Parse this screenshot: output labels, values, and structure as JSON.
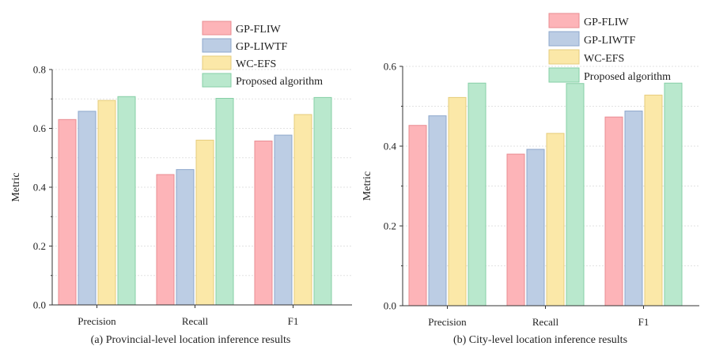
{
  "legend_entries": [
    "GP-FLIW",
    "GP-LIWTF",
    "WC-EFS",
    "Proposed algorithm"
  ],
  "colors": {
    "GP-FLIW": {
      "fill": "#fdb4b8",
      "stroke": "#e98c92"
    },
    "GP-LIWTF": {
      "fill": "#bccde4",
      "stroke": "#8ea8cc"
    },
    "WC-EFS": {
      "fill": "#fbe8a8",
      "stroke": "#e6cc7c"
    },
    "Proposed algorithm": {
      "fill": "#b9e8cd",
      "stroke": "#86cfa6"
    }
  },
  "chart_data": [
    {
      "type": "bar",
      "title": "(a) Provincial-level location inference results",
      "xlabel": "",
      "ylabel": "Metric",
      "categories": [
        "Precision",
        "Recall",
        "F1"
      ],
      "ylim": [
        0,
        0.8
      ],
      "yticks": [
        "0.0",
        "0.2",
        "0.4",
        "0.6",
        "0.8"
      ],
      "grid": true,
      "legend_position": "top-right",
      "series": [
        {
          "name": "GP-FLIW",
          "values": [
            0.63,
            0.443,
            0.557
          ]
        },
        {
          "name": "GP-LIWTF",
          "values": [
            0.658,
            0.46,
            0.577
          ]
        },
        {
          "name": "WC-EFS",
          "values": [
            0.695,
            0.56,
            0.647
          ]
        },
        {
          "name": "Proposed algorithm",
          "values": [
            0.708,
            0.702,
            0.705
          ]
        }
      ]
    },
    {
      "type": "bar",
      "title": "(b) City-level location inference results",
      "xlabel": "",
      "ylabel": "Metric",
      "categories": [
        "Precision",
        "Recall",
        "F1"
      ],
      "ylim": [
        0,
        0.6
      ],
      "yticks": [
        "0.0",
        "0.2",
        "0.4",
        "0.6"
      ],
      "grid": true,
      "legend_position": "top-right",
      "series": [
        {
          "name": "GP-FLIW",
          "values": [
            0.452,
            0.38,
            0.473
          ]
        },
        {
          "name": "GP-LIWTF",
          "values": [
            0.476,
            0.392,
            0.488
          ]
        },
        {
          "name": "WC-EFS",
          "values": [
            0.522,
            0.432,
            0.528
          ]
        },
        {
          "name": "Proposed algorithm",
          "values": [
            0.558,
            0.557,
            0.558
          ]
        }
      ]
    }
  ]
}
